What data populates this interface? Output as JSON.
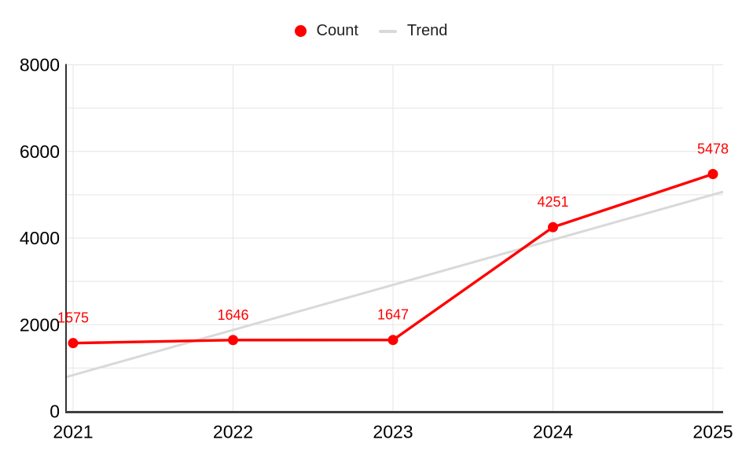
{
  "legend": {
    "items": [
      {
        "label": "Count",
        "marker": "circle",
        "color": "#ff0000"
      },
      {
        "label": "Trend",
        "marker": "dash",
        "color": "#d9d9d9"
      }
    ]
  },
  "chart_data": {
    "type": "line",
    "title": "",
    "xlabel": "",
    "ylabel": "",
    "x": [
      2021,
      2022,
      2023,
      2024,
      2025
    ],
    "x_tick_labels": [
      "2021",
      "2022",
      "2023",
      "2024",
      "2025"
    ],
    "series": [
      {
        "name": "Count",
        "type": "line_with_points",
        "color": "#ff0000",
        "values": [
          1575,
          1646,
          1647,
          4251,
          5478
        ],
        "data_labels": [
          "1575",
          "1646",
          "1647",
          "4251",
          "5478"
        ]
      },
      {
        "name": "Trend",
        "type": "linear_trendline",
        "color": "#d9d9d9",
        "values": [
          837,
          1878,
          2919,
          3961,
          5002
        ],
        "extends_to_plot_edges": true
      }
    ],
    "ylim": [
      0,
      8000
    ],
    "y_major_ticks": [
      0,
      2000,
      4000,
      6000,
      8000
    ],
    "y_tick_labels": [
      "0",
      "2000",
      "4000",
      "6000",
      "8000"
    ],
    "y_minor_gridline_step": 1000,
    "grid": true,
    "legend_position": "top-center",
    "background_color": "#ffffff",
    "axis_text_color": "#000000",
    "data_label_color": "#ff0000"
  }
}
